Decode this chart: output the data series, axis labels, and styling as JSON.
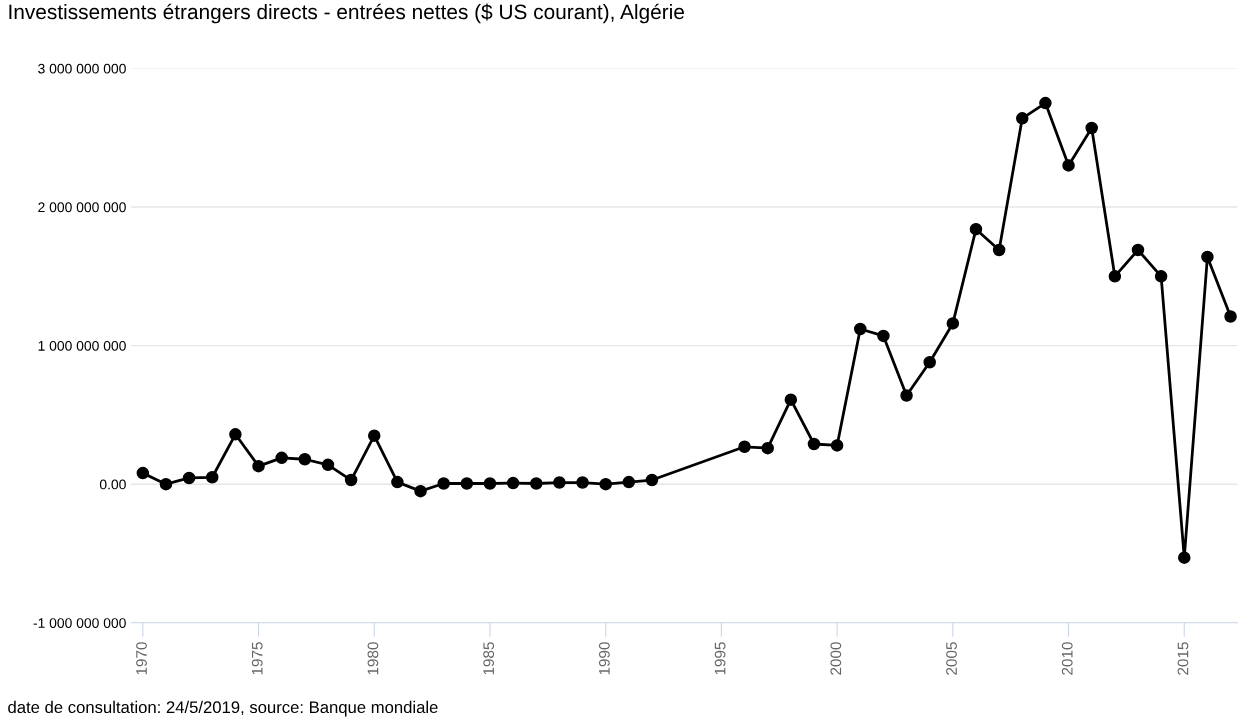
{
  "chart_data": {
    "type": "line",
    "title": "Investissements étrangers directs - entrées nettes ($ US courant), Algérie",
    "x": [
      1970,
      1971,
      1972,
      1973,
      1974,
      1975,
      1976,
      1977,
      1978,
      1979,
      1980,
      1981,
      1982,
      1983,
      1984,
      1985,
      1986,
      1987,
      1988,
      1989,
      1990,
      1991,
      1992,
      1996,
      1997,
      1998,
      1999,
      2000,
      2001,
      2002,
      2003,
      2004,
      2005,
      2006,
      2007,
      2008,
      2009,
      2010,
      2011,
      2012,
      2013,
      2014,
      2015,
      2016,
      2017
    ],
    "series": [
      {
        "color": "#000000",
        "values": [
          80000000,
          0,
          45000000,
          50000000,
          360000000,
          130000000,
          190000000,
          180000000,
          140000000,
          30000000,
          350000000,
          15000000,
          -50000000,
          5000000,
          5000000,
          5000000,
          8000000,
          5000000,
          12000000,
          12000000,
          0,
          15000000,
          30000000,
          270000000,
          260000000,
          610000000,
          290000000,
          280000000,
          1120000000,
          1070000000,
          640000000,
          880000000,
          1160000000,
          1840000000,
          1690000000,
          2640000000,
          2750000000,
          2300000000,
          2570000000,
          1500000000,
          1690000000,
          1500000000,
          -530000000,
          1640000000,
          1210000000
        ]
      }
    ],
    "xlim": [
      1969.5,
      2017.3
    ],
    "xticks": [
      1970,
      1975,
      1980,
      1985,
      1990,
      1995,
      2000,
      2005,
      2010,
      2015
    ],
    "ylim": [
      -1000000000,
      3000000000
    ],
    "yticks": [
      {
        "value": -1000000000,
        "label": "-1 000 000 000"
      },
      {
        "value": 0,
        "label": "0.00"
      },
      {
        "value": 1000000000,
        "label": "1 000 000 000"
      },
      {
        "value": 2000000000,
        "label": "2 000 000 000"
      },
      {
        "value": 3000000000,
        "label": "3 000 000 000"
      }
    ],
    "grid": "y",
    "marker": "circle",
    "line_style": "solid",
    "annotations": [
      "date de consultation: 24/5/2019, source: Banque mondiale"
    ]
  }
}
